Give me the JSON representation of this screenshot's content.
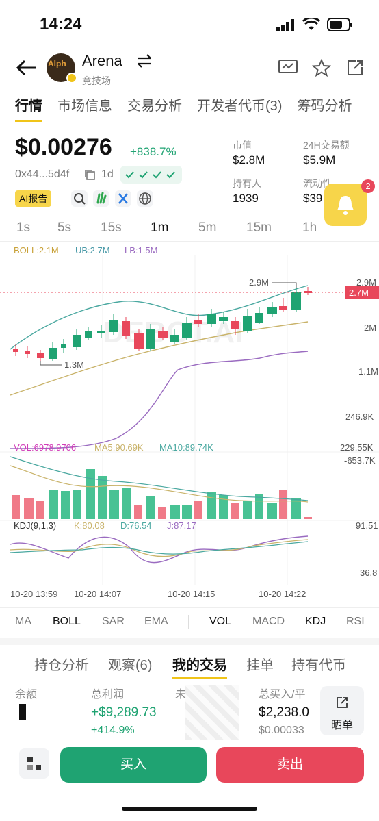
{
  "status": {
    "time": "14:24"
  },
  "header": {
    "title": "Arena",
    "subtitle": "竞技场",
    "logo_text": "Alph"
  },
  "tabs": [
    "行情",
    "市场信息",
    "交易分析",
    "开发者代币(3)",
    "筹码分析"
  ],
  "token": {
    "price": "$0.00276",
    "change": "+838.7%",
    "address": "0x44...5d4f",
    "age": "1d",
    "ai_report": "AI报告"
  },
  "stats": {
    "market_cap_label": "市值",
    "market_cap": "$2.8M",
    "volume_label": "24H交易额",
    "volume": "$5.9M",
    "holders_label": "持有人",
    "holders": "1939",
    "liquidity_label": "流动性",
    "liquidity": "$39"
  },
  "notification_badge": "2",
  "intervals": [
    "1s",
    "5s",
    "15s",
    "1m",
    "5m",
    "15m",
    "1h"
  ],
  "chart_labels": {
    "boll": "BOLL:2.1M",
    "ub": "UB:2.7M",
    "lb": "LB:1.5M",
    "price_axis": [
      "2.9M",
      "2M",
      "1.1M",
      "246.9K",
      "-653.7K"
    ],
    "current_price_tag": "2.7M",
    "high_marker": "2.9M",
    "low_marker": "1.3M",
    "watermark": "DEBOT.AI",
    "vol": "VOL:6978.9706",
    "ma5": "MA5:90.69K",
    "ma10": "MA10:89.74K",
    "vol_axis": "229.55K",
    "kdj": "KDJ(9,1,3)",
    "k": "K:80.08",
    "d": "D:76.54",
    "j": "J:87.17",
    "kdj_axis_top": "91.51",
    "kdj_axis_bottom": "36.8",
    "times": [
      "10-20 13:59",
      "10-20 14:07",
      "10-20 14:15",
      "10-20 14:22"
    ]
  },
  "indicators": [
    "MA",
    "BOLL",
    "SAR",
    "EMA",
    "VOL",
    "MACD",
    "KDJ",
    "RSI"
  ],
  "bottom_tabs": [
    "持仓分析",
    "观察(6)",
    "我的交易",
    "挂单",
    "持有代币"
  ],
  "position": {
    "balance_label": "余额",
    "pnl_label": "总利润",
    "pnl": "+$9,289.73",
    "pnl_pct": "+414.9%",
    "unrealized_label": "未",
    "buy_label": "总买入/平",
    "buy_total": "$2,238.0",
    "avg_price": "$0.00033",
    "share_label": "晒单"
  },
  "actions": {
    "buy": "买入",
    "sell": "卖出"
  },
  "colors": {
    "up": "#1fa372",
    "down": "#e8475b",
    "accent": "#f0c419"
  }
}
